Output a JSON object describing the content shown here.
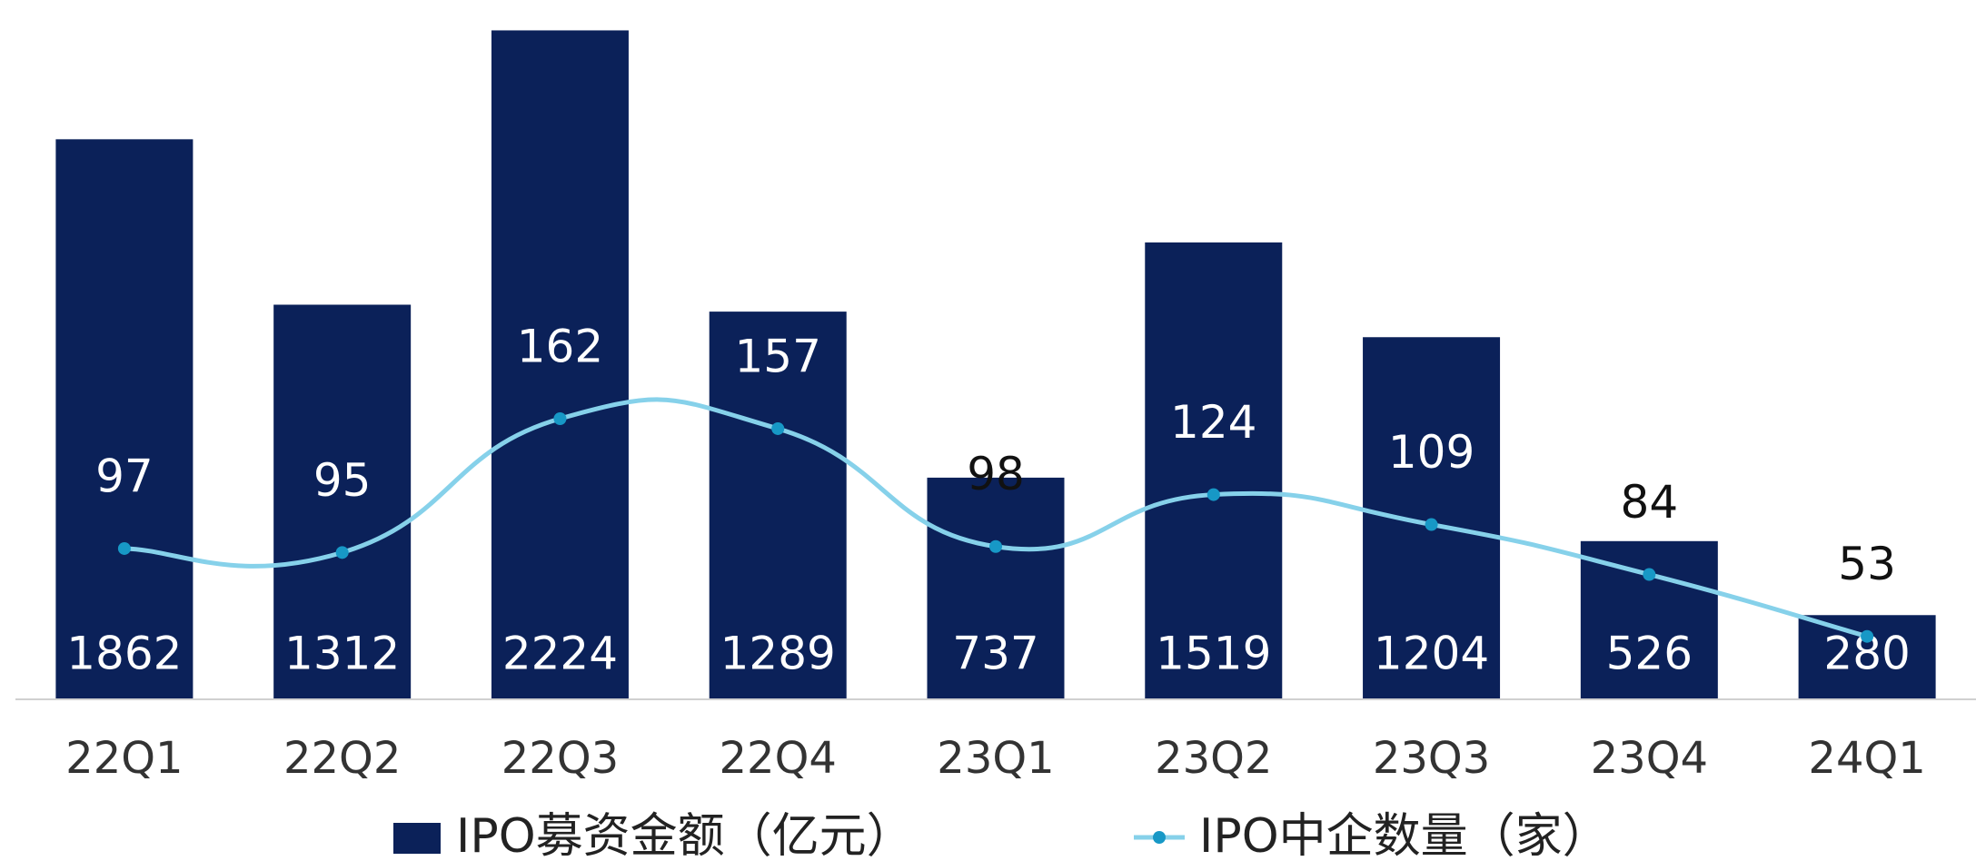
{
  "chart_data": {
    "type": "bar",
    "categories": [
      "22Q1",
      "22Q2",
      "22Q3",
      "22Q4",
      "23Q1",
      "23Q2",
      "23Q3",
      "23Q4",
      "24Q1"
    ],
    "series": [
      {
        "name": "IPO募资金额（亿元）",
        "type": "bar",
        "color": "#0b2159",
        "values": [
          1862,
          1312,
          2224,
          1289,
          737,
          1519,
          1204,
          526,
          280
        ]
      },
      {
        "name": "IPO中企数量（家）",
        "type": "line",
        "axis": "y2",
        "color": "#86d1ea",
        "marker_color": "#1798c6",
        "values": [
          97,
          95,
          162,
          157,
          98,
          124,
          109,
          84,
          53
        ]
      }
    ],
    "ylim": [
      0,
      2325
    ],
    "y2lim": [
      21.5,
      371.6
    ]
  }
}
